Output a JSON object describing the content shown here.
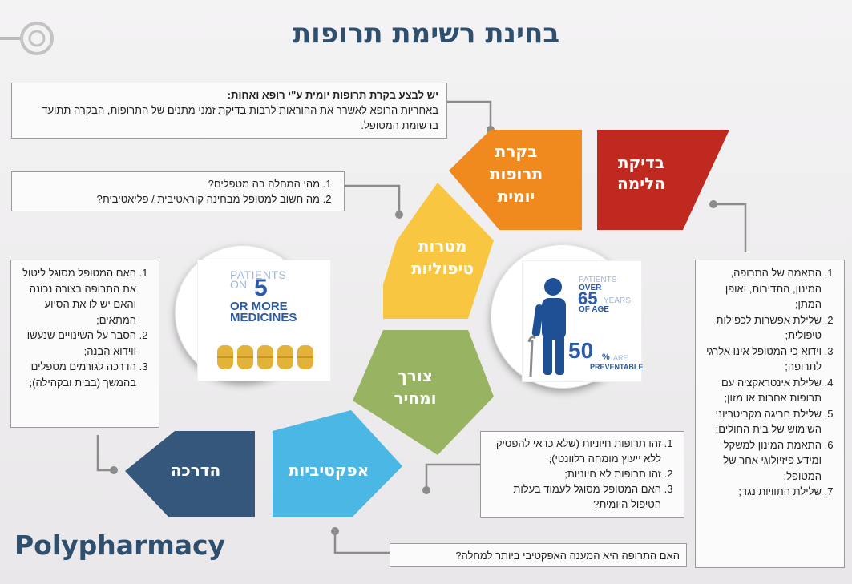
{
  "title": "בחינת רשימת תרופות",
  "brand": "Polypharmacy",
  "segments": [
    {
      "id": "compliance",
      "lines": [
        "בדיקת",
        "הלימה"
      ],
      "color": "#c0291f"
    },
    {
      "id": "daily-review",
      "lines": [
        "בקרת",
        "תרופות",
        "יומית"
      ],
      "color": "#f08a1e"
    },
    {
      "id": "goals",
      "lines": [
        "מטרות",
        "טיפוליות"
      ],
      "color": "#f9c642"
    },
    {
      "id": "need-cost",
      "lines": [
        "צורך",
        "ומחיר"
      ],
      "color": "#98b463"
    },
    {
      "id": "effectiveness",
      "lines": [
        "אפקטיביות"
      ],
      "color": "#4bb7e5"
    },
    {
      "id": "guidance",
      "lines": [
        "הדרכה"
      ],
      "color": "#35577c"
    }
  ],
  "boxes": {
    "daily": {
      "lines": [
        "יש לבצע בקרת תרופות יומית ע\"י רופא ואחות:",
        "באחריות הרופא לאשרר את ההוראות לרבות בדיקת זמני מתנים של התרופות, הבקרה תתועד ברשומת המטופל."
      ]
    },
    "goals": {
      "items": [
        "מהי המחלה בה מטפלים?",
        "מה חשוב למטופל מבחינה קוראטיבית / פליאטיבית?"
      ]
    },
    "guidance": {
      "items": [
        "האם המטופל מסוגל ליטול את התרופה בצורה נכונה והאם יש לו את הסיוע המתאים;",
        "הסבר על השינויים שנעשו ווידוא הבנה;",
        "הדרכה לגורמים מטפלים בהמשך (בבית ובקהילה);"
      ]
    },
    "compliance": {
      "items": [
        "התאמה של התרופה, המינון, התדירות, ואופן המתן;",
        "שלילת אפשרות לכפילות טיפולית;",
        "וידוא כי המטופל אינו אלרגי לתרופה;",
        "שלילת אינטראקציה עם תרופות אחרות או מזון;",
        "שלילת חריגה מקריטריוני השימוש של בית החולים;",
        "התאמת המינון למשקל ומידע פיזיולוגי אחר של המטופל;",
        "שלילת התוויות נגד;"
      ]
    },
    "need": {
      "items": [
        "זהו תרופות חיוניות (שלא כדאי להפסיק ללא ייעוץ מומחה רלוונטי);",
        "זהו תרופות לא חיוניות;",
        "האם המטופל מסוגל לעמוד בעלות הטיפול היומית?"
      ]
    },
    "effectiveness": {
      "lines": [
        "האם התרופה היא המענה האפקטיבי ביותר למחלה?"
      ]
    }
  },
  "stat_left": {
    "line1": "PATIENTS",
    "line2": "ON",
    "number": "5",
    "line3": "OR MORE",
    "line4": "MEDICINES"
  },
  "stat_right": {
    "line1": "PATIENTS",
    "line2": "OVER",
    "number": "65",
    "number_suffix": "YEARS",
    "line3": "OF AGE",
    "percent": "50",
    "percent_sign": "%",
    "line4": "ARE",
    "line5": "PREVENTABLE"
  },
  "colors": {
    "title": "#2e4f6e",
    "pill": "#e2b23a",
    "stat_blue": "#2a5aa8",
    "figure": "#1f4f95",
    "connector": "#8c8c8c"
  },
  "icons": [
    "magnifier-icon",
    "pill-icon",
    "elderly-person-icon"
  ]
}
